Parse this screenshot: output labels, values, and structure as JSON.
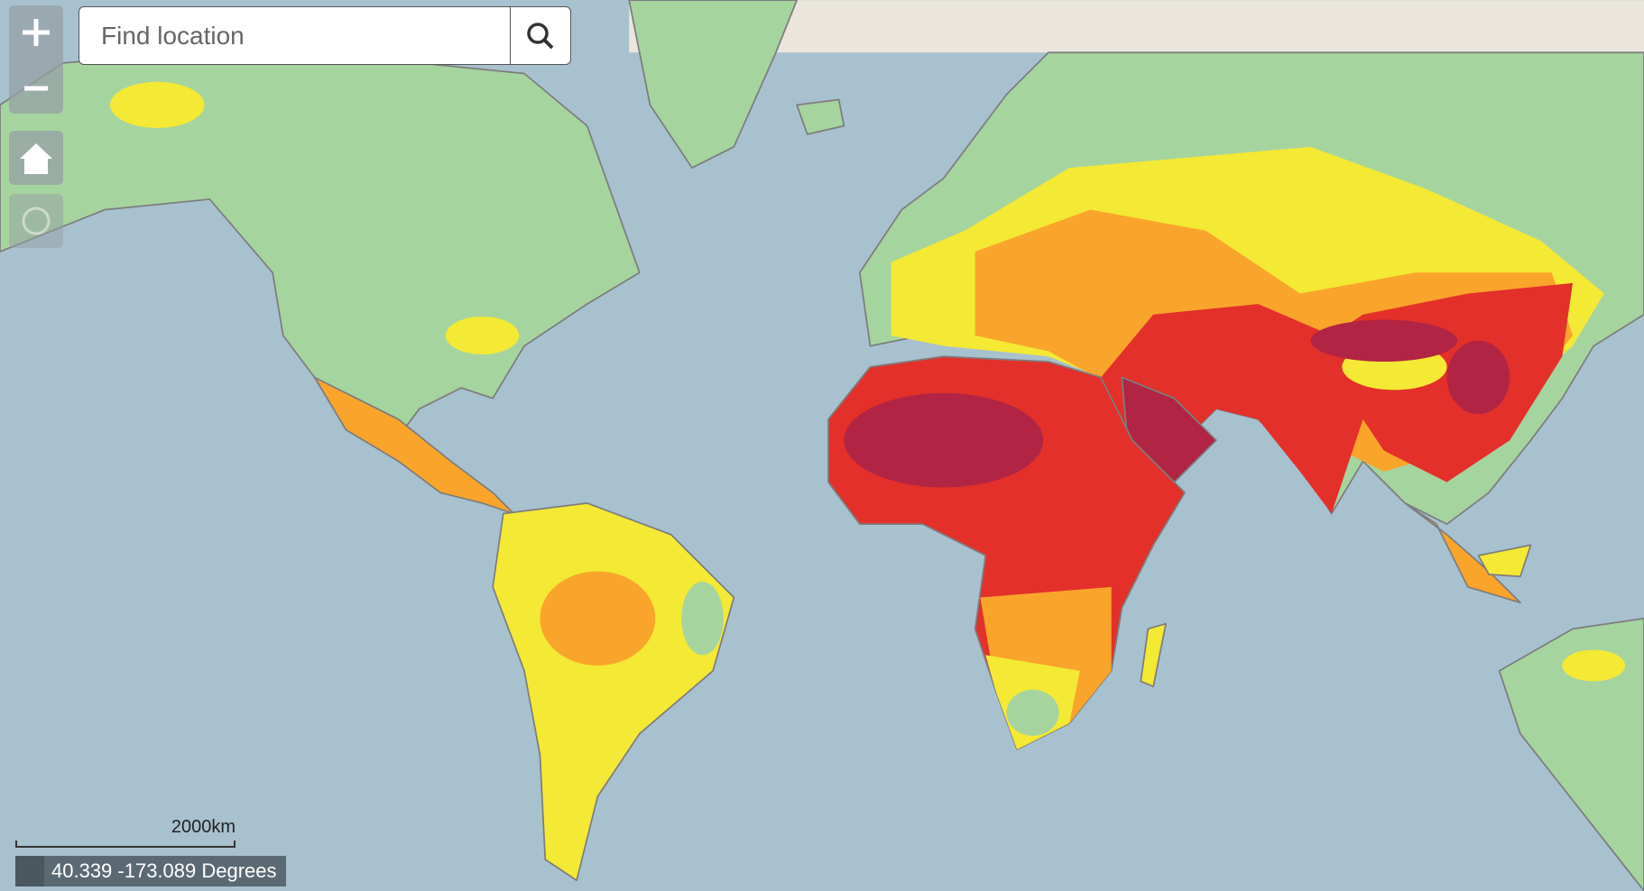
{
  "search": {
    "placeholder": "Find location"
  },
  "scale_bar": {
    "label": "2000km"
  },
  "coordinates": {
    "text": "40.339 -173.089 Degrees"
  }
}
